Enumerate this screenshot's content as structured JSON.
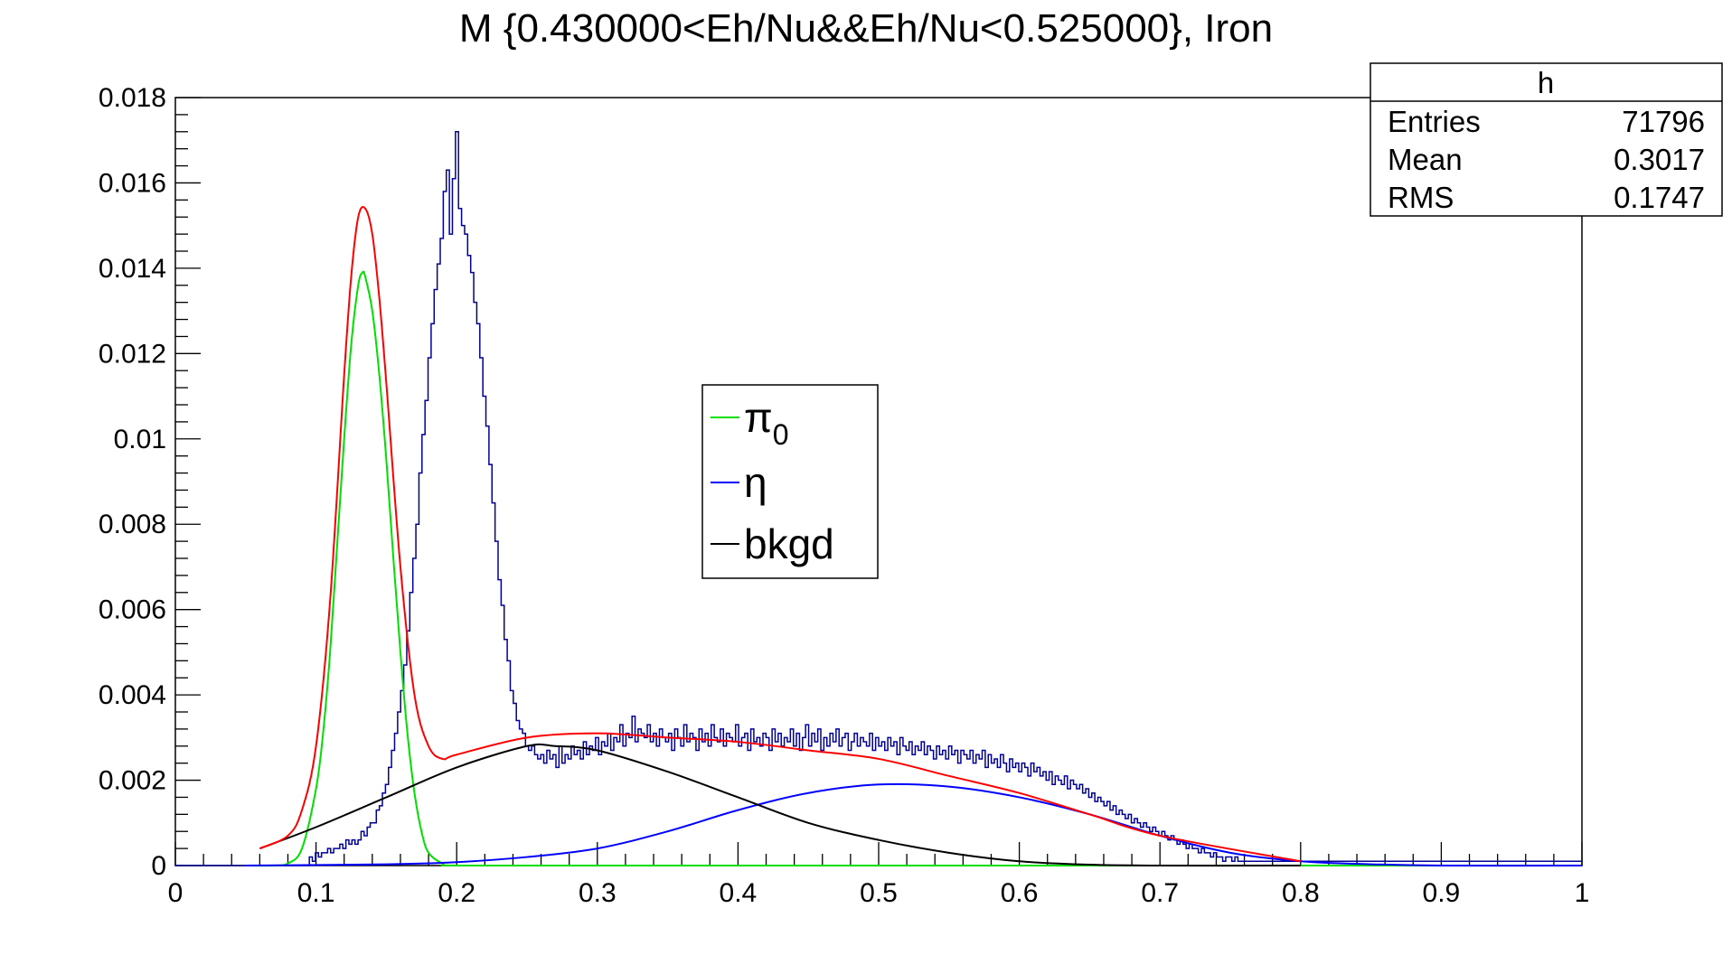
{
  "chart_data": {
    "type": "histogram-with-fits",
    "title": "M {0.430000<Eh/Nu&&Eh/Nu<0.525000}, Iron",
    "xlim": [
      0,
      1
    ],
    "ylim": [
      0,
      0.018
    ],
    "x_ticks": [
      0,
      0.1,
      0.2,
      0.3,
      0.4,
      0.5,
      0.6,
      0.7,
      0.8,
      0.9,
      1
    ],
    "x_tick_labels": [
      "0",
      "0.1",
      "0.2",
      "0.3",
      "0.4",
      "0.5",
      "0.6",
      "0.7",
      "0.8",
      "0.9",
      "1"
    ],
    "y_ticks": [
      0,
      0.002,
      0.004,
      0.006,
      0.008,
      0.01,
      0.012,
      0.014,
      0.016,
      0.018
    ],
    "y_tick_labels": [
      "0",
      "0.002",
      "0.004",
      "0.006",
      "0.008",
      "0.01",
      "0.012",
      "0.014",
      "0.016",
      "0.018"
    ],
    "grid": false,
    "stats_box": {
      "name": "h",
      "rows": [
        {
          "label": "Entries",
          "value": "71796"
        },
        {
          "label": "Mean",
          "value": "0.3017"
        },
        {
          "label": "RMS",
          "value": "0.1747"
        }
      ]
    },
    "legend": {
      "placement": "center",
      "entries": [
        {
          "label": "π",
          "sub": "0",
          "color": "#00e000"
        },
        {
          "label": "η",
          "sub": "",
          "color": "#0000ff"
        },
        {
          "label": "bkgd",
          "sub": "",
          "color": "#000000"
        }
      ]
    },
    "histogram": {
      "color": "#000099",
      "x_range": [
        0,
        1
      ],
      "n_bins": 500,
      "values": [
        0,
        0,
        0,
        0,
        0,
        0,
        0,
        0,
        0,
        0,
        0,
        0,
        0,
        0,
        0,
        0,
        0,
        0,
        0,
        0,
        0,
        0,
        0,
        0,
        0,
        0,
        0,
        0,
        0,
        0,
        0,
        0,
        0,
        0,
        0,
        0,
        0,
        0,
        0,
        0,
        0,
        0,
        0,
        0,
        0.0002,
        0.0001,
        0.0003,
        0.0002,
        0.0003,
        0.0003,
        0.0004,
        0.0003,
        0.0004,
        0.0004,
        0.0005,
        0.0004,
        0.0006,
        0.0005,
        0.0006,
        0.0005,
        0.0006,
        0.0008,
        0.0007,
        0.0009,
        0.001,
        0.001,
        0.0013,
        0.0014,
        0.0017,
        0.0019,
        0.0023,
        0.0027,
        0.0031,
        0.0036,
        0.0041,
        0.0047,
        0.0055,
        0.0064,
        0.0072,
        0.008,
        0.0092,
        0.0101,
        0.0109,
        0.0119,
        0.0127,
        0.0135,
        0.0141,
        0.0147,
        0.0158,
        0.0163,
        0.0148,
        0.0161,
        0.0172,
        0.0154,
        0.015,
        0.0148,
        0.0143,
        0.0139,
        0.0132,
        0.0127,
        0.0119,
        0.011,
        0.0103,
        0.0094,
        0.0085,
        0.0076,
        0.0067,
        0.0061,
        0.0053,
        0.0048,
        0.0041,
        0.0038,
        0.0034,
        0.0032,
        0.0031,
        0.0028,
        0.0027,
        0.0028,
        0.0026,
        0.0025,
        0.0026,
        0.0024,
        0.0027,
        0.0025,
        0.0026,
        0.0023,
        0.0028,
        0.0024,
        0.0026,
        0.0025,
        0.0028,
        0.0026,
        0.0027,
        0.0025,
        0.0029,
        0.0026,
        0.0028,
        0.0027,
        0.003,
        0.0026,
        0.0029,
        0.0028,
        0.0031,
        0.0027,
        0.003,
        0.0029,
        0.0033,
        0.0028,
        0.0031,
        0.003,
        0.0035,
        0.0029,
        0.0032,
        0.0031,
        0.003,
        0.0033,
        0.0029,
        0.0031,
        0.0028,
        0.0032,
        0.003,
        0.0029,
        0.0031,
        0.0027,
        0.0032,
        0.003,
        0.0028,
        0.0033,
        0.0029,
        0.0031,
        0.003,
        0.0027,
        0.0032,
        0.0029,
        0.0031,
        0.0028,
        0.0033,
        0.003,
        0.0029,
        0.0032,
        0.0028,
        0.0031,
        0.003,
        0.0029,
        0.0033,
        0.0028,
        0.003,
        0.0031,
        0.0027,
        0.0032,
        0.0029,
        0.003,
        0.0028,
        0.0031,
        0.003,
        0.0027,
        0.0032,
        0.0029,
        0.0031,
        0.0028,
        0.003,
        0.0029,
        0.0032,
        0.0028,
        0.0031,
        0.0027,
        0.003,
        0.0033,
        0.0028,
        0.0031,
        0.0029,
        0.0032,
        0.0027,
        0.003,
        0.0028,
        0.0031,
        0.0029,
        0.0032,
        0.0028,
        0.003,
        0.0031,
        0.0027,
        0.0029,
        0.0031,
        0.0028,
        0.003,
        0.0029,
        0.0028,
        0.0031,
        0.0027,
        0.003,
        0.0028,
        0.0029,
        0.0027,
        0.003,
        0.0028,
        0.0029,
        0.0026,
        0.003,
        0.0028,
        0.0027,
        0.0029,
        0.0026,
        0.0028,
        0.0027,
        0.0029,
        0.0026,
        0.0028,
        0.0027,
        0.0025,
        0.0028,
        0.0026,
        0.0027,
        0.0025,
        0.0028,
        0.0026,
        0.0027,
        0.0024,
        0.0027,
        0.0026,
        0.0025,
        0.0027,
        0.0024,
        0.0026,
        0.0025,
        0.0027,
        0.0023,
        0.0026,
        0.0024,
        0.0025,
        0.0023,
        0.0026,
        0.0024,
        0.0022,
        0.0025,
        0.0023,
        0.0024,
        0.0022,
        0.0024,
        0.0023,
        0.0021,
        0.0024,
        0.0022,
        0.0023,
        0.0021,
        0.0022,
        0.002,
        0.0022,
        0.0019,
        0.0021,
        0.002,
        0.0019,
        0.0021,
        0.0018,
        0.002,
        0.0019,
        0.0018,
        0.0019,
        0.0017,
        0.0018,
        0.0016,
        0.0017,
        0.0015,
        0.0016,
        0.0015,
        0.0014,
        0.0015,
        0.0013,
        0.0014,
        0.0012,
        0.0013,
        0.0012,
        0.0011,
        0.0012,
        0.001,
        0.0011,
        0.001,
        0.0009,
        0.001,
        0.0009,
        0.0008,
        0.0009,
        0.0008,
        0.0007,
        0.0008,
        0.0007,
        0.0006,
        0.0007,
        0.0006,
        0.0005,
        0.0006,
        0.0005,
        0.0004,
        0.0005,
        0.0004,
        0.0004,
        0.0003,
        0.0004,
        0.0003,
        0.0003,
        0.0002,
        0.0003,
        0.0002,
        0.0002,
        0.0001,
        0.0002,
        0.0002,
        0.0001,
        0.0002,
        0.0001,
        0.0001,
        0.0001,
        0.0001,
        0.0001,
        0.0001,
        0.0001,
        0.0001,
        0.0001,
        0.0001,
        0.0001,
        0.0001,
        0.0001,
        0.0001,
        0.0001,
        0.0001,
        0.0001,
        0.0001,
        0.0001,
        0.0001,
        0.0001,
        0.0001,
        0.0001,
        0.0001,
        0.0001,
        0.0001,
        0.0001,
        0.0001,
        0.0001,
        0.0001,
        0.0001,
        0.0001,
        0.0001,
        0.0001,
        0.0001,
        0.0001,
        0.0001,
        0.0001,
        0.0001,
        0.0001,
        0.0001,
        0.0001,
        0.0001,
        0.0001,
        0.0001,
        0.0001,
        0.0001,
        0.0001,
        0.0001,
        0.0001,
        0.0001,
        0.0001,
        0.0001,
        0.0001,
        0.0001,
        0.0001,
        0.0001,
        0.0001,
        0.0001,
        0.0001,
        0.0001,
        0.0001,
        0.0001,
        0.0001,
        0.0001,
        0.0001,
        0.0001,
        0.0001,
        0.0001,
        0.0001,
        0.0001,
        0.0001,
        0.0001,
        0.0001,
        0.0001,
        0.0001,
        0.0001,
        0.0001,
        0.0001,
        0.0001,
        0.0001,
        0.0001,
        0.0001,
        0.0001,
        0.0001,
        0.0001,
        0.0001,
        0.0001,
        0.0001,
        0.0001,
        0.0001,
        0.0001,
        0.0001,
        0.0001,
        0.0001,
        0.0001,
        0.0001,
        0.0001,
        0.0001,
        0.0001,
        0.0001,
        0.0001,
        0.0001,
        0.0001,
        0.0001,
        0.0001,
        0.0001,
        0.0001,
        0.0001,
        0.0001,
        0.0001,
        0.0001,
        0.0001
      ]
    },
    "series": [
      {
        "name": "π0",
        "color": "#00e000",
        "x": [
          0.05,
          0.07,
          0.08,
          0.09,
          0.1,
          0.105,
          0.11,
          0.115,
          0.12,
          0.125,
          0.13,
          0.133,
          0.135,
          0.14,
          0.145,
          0.15,
          0.155,
          0.16,
          0.165,
          0.17,
          0.175,
          0.18,
          0.19,
          0.2,
          0.3,
          0.5,
          0.7,
          1.0
        ],
        "y": [
          0,
          0,
          5e-05,
          0.0004,
          0.0018,
          0.0031,
          0.005,
          0.0075,
          0.01,
          0.0122,
          0.0136,
          0.0139,
          0.0138,
          0.013,
          0.0115,
          0.0095,
          0.0072,
          0.005,
          0.0031,
          0.0017,
          0.0008,
          0.0003,
          5e-05,
          0,
          0,
          0,
          0,
          0
        ]
      },
      {
        "name": "η",
        "color": "#0000ff",
        "x": [
          0.05,
          0.15,
          0.2,
          0.25,
          0.3,
          0.35,
          0.4,
          0.45,
          0.5,
          0.55,
          0.6,
          0.65,
          0.7,
          0.75,
          0.8,
          0.85,
          0.9,
          1.0
        ],
        "y": [
          0,
          3e-05,
          8e-05,
          0.0002,
          0.0004,
          0.0008,
          0.0013,
          0.0017,
          0.0019,
          0.00185,
          0.0016,
          0.0012,
          0.0007,
          0.0003,
          0.0001,
          3e-05,
          0,
          0
        ]
      },
      {
        "name": "bkgd",
        "color": "#000000",
        "x": [
          0.06,
          0.1,
          0.15,
          0.2,
          0.25,
          0.27,
          0.3,
          0.35,
          0.4,
          0.45,
          0.5,
          0.55,
          0.6,
          0.65,
          0.7,
          0.8
        ],
        "y": [
          0.0004,
          0.0009,
          0.0016,
          0.0023,
          0.0028,
          0.0028,
          0.0027,
          0.0022,
          0.0016,
          0.001,
          0.0006,
          0.0003,
          0.0001,
          2e-05,
          0,
          0
        ]
      },
      {
        "name": "total",
        "color": "#ff0000",
        "x": [
          0.06,
          0.08,
          0.09,
          0.1,
          0.11,
          0.12,
          0.125,
          0.13,
          0.135,
          0.14,
          0.145,
          0.15,
          0.16,
          0.17,
          0.18,
          0.19,
          0.2,
          0.25,
          0.3,
          0.35,
          0.4,
          0.45,
          0.5,
          0.55,
          0.6,
          0.65,
          0.7,
          0.8
        ],
        "y": [
          0.0004,
          0.0007,
          0.0013,
          0.0028,
          0.0062,
          0.0115,
          0.0138,
          0.0152,
          0.0154,
          0.0148,
          0.0133,
          0.0113,
          0.007,
          0.004,
          0.0028,
          0.0025,
          0.0026,
          0.003,
          0.0031,
          0.003,
          0.0029,
          0.0027,
          0.0025,
          0.0021,
          0.0017,
          0.0012,
          0.0007,
          0.0001
        ]
      }
    ]
  }
}
